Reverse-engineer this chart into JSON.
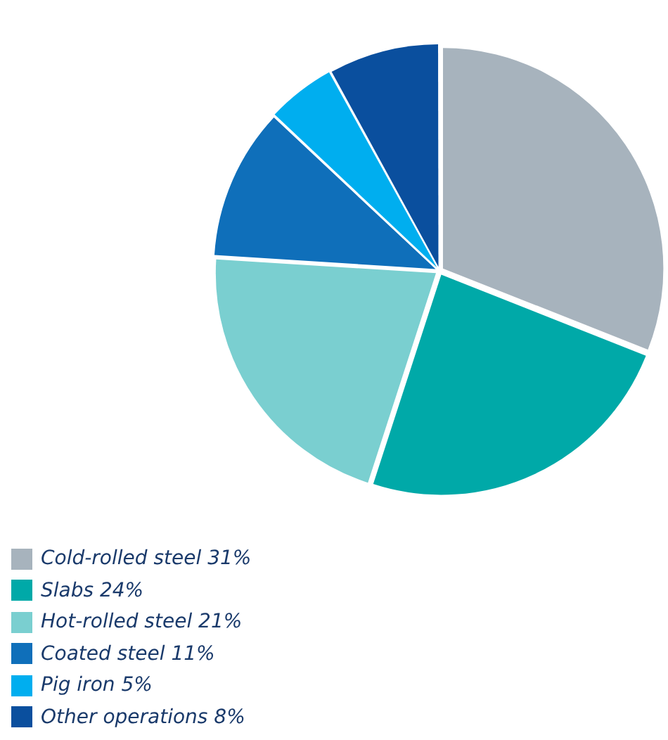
{
  "chart_data": {
    "type": "pie",
    "categories": [
      "Cold-rolled steel 31%",
      "Slabs 24%",
      "Hot-rolled steel 21%",
      "Coated steel 11%",
      "Pig iron 5%",
      "Other operations 8%"
    ],
    "values": [
      31,
      24,
      21,
      11,
      5,
      8
    ],
    "colors": [
      "#a7b3bd",
      "#00a9a8",
      "#7acfd0",
      "#0f6fba",
      "#00aeef",
      "#0a4f9e"
    ],
    "legend": "bottom left"
  }
}
